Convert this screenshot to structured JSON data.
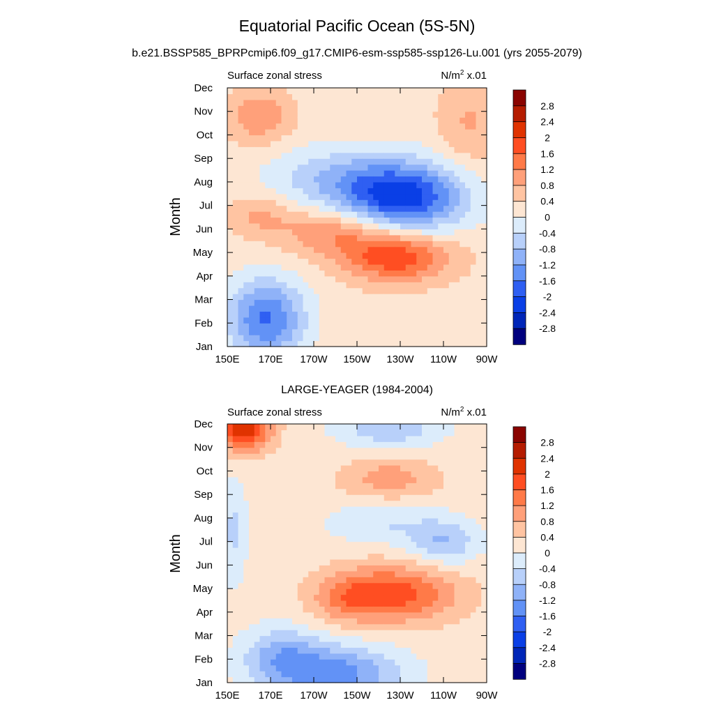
{
  "title": "Equatorial Pacific Ocean (5S-5N)",
  "subtitle": "b.e21.BSSP585_BPRPcmip6.f09_g17.CMIP6-esm-ssp585-ssp126-Lu.001 (yrs 2055-2079)",
  "chart_data": [
    {
      "type": "heatmap",
      "panel_title": "",
      "left_label": "Surface zonal stress",
      "units_label": "N/m",
      "units_sup": "2",
      "units_suffix": " x.01",
      "ylabel": "Month",
      "x_ticks": [
        "150E",
        "170E",
        "170W",
        "150W",
        "130W",
        "110W",
        "90W"
      ],
      "y_ticks": [
        "Jan",
        "Feb",
        "Mar",
        "Apr",
        "May",
        "Jun",
        "Jul",
        "Aug",
        "Sep",
        "Oct",
        "Nov",
        "Dec"
      ],
      "xlim_deg_east": [
        150,
        270
      ],
      "contour_levels": [
        -2.8,
        -2.4,
        -2,
        -1.6,
        -1.2,
        -0.8,
        -0.4,
        0,
        0.4,
        0.8,
        1.2,
        1.6,
        2,
        2.4,
        2.8
      ],
      "features": [
        {
          "lon": 168,
          "month": 2.2,
          "amp": -1.9,
          "rlon": 18,
          "rmon": 1.7
        },
        {
          "lon": 232,
          "month": 7.3,
          "amp": -2.1,
          "rlon": 28,
          "rmon": 1.4
        },
        {
          "lon": 215,
          "month": 8.0,
          "amp": -0.8,
          "rlon": 34,
          "rmon": 1.5
        },
        {
          "lon": 190,
          "month": 8.3,
          "amp": -0.4,
          "rlon": 28,
          "rmon": 1.2
        },
        {
          "lon": 228,
          "month": 4.8,
          "amp": 1.7,
          "rlon": 24,
          "rmon": 1.0
        },
        {
          "lon": 200,
          "month": 5.9,
          "amp": 1.0,
          "rlon": 26,
          "rmon": 1.0
        },
        {
          "lon": 165,
          "month": 6.6,
          "amp": 0.6,
          "rlon": 14,
          "rmon": 0.8
        },
        {
          "lon": 165,
          "month": 10.8,
          "amp": 0.9,
          "rlon": 14,
          "rmon": 1.1
        },
        {
          "lon": 262,
          "month": 10.5,
          "amp": 0.6,
          "rlon": 14,
          "rmon": 1.8
        }
      ],
      "background": 0.25
    },
    {
      "type": "heatmap",
      "panel_title": "LARGE-YEAGER (1984-2004)",
      "left_label": "Surface zonal stress",
      "units_label": "N/m",
      "units_sup": "2",
      "units_suffix": " x.01",
      "ylabel": "Month",
      "x_ticks": [
        "150E",
        "170E",
        "170W",
        "150W",
        "130W",
        "110W",
        "90W"
      ],
      "y_ticks": [
        "Jan",
        "Feb",
        "Mar",
        "Apr",
        "May",
        "Jun",
        "Jul",
        "Aug",
        "Sep",
        "Oct",
        "Nov",
        "Dec"
      ],
      "xlim_deg_east": [
        150,
        270
      ],
      "contour_levels": [
        -2.8,
        -2.4,
        -2,
        -1.6,
        -1.2,
        -0.8,
        -0.4,
        0,
        0.4,
        0.8,
        1.2,
        1.6,
        2,
        2.4,
        2.8
      ],
      "features": [
        {
          "lon": 158,
          "month": 11.8,
          "amp": 2.2,
          "rlon": 12,
          "rmon": 0.9
        },
        {
          "lon": 228,
          "month": 4.8,
          "amp": 1.6,
          "rlon": 28,
          "rmon": 1.2
        },
        {
          "lon": 205,
          "month": 4.6,
          "amp": 0.7,
          "rlon": 16,
          "rmon": 1.0
        },
        {
          "lon": 225,
          "month": 9.7,
          "amp": 0.8,
          "rlon": 22,
          "rmon": 0.9
        },
        {
          "lon": 200,
          "month": 1.4,
          "amp": -1.6,
          "rlon": 30,
          "rmon": 1.2
        },
        {
          "lon": 175,
          "month": 2.2,
          "amp": -1.0,
          "rlon": 18,
          "rmon": 1.2
        },
        {
          "lon": 250,
          "month": 7.0,
          "amp": -1.0,
          "rlon": 16,
          "rmon": 1.0
        },
        {
          "lon": 220,
          "month": 7.8,
          "amp": -0.6,
          "rlon": 24,
          "rmon": 0.9
        },
        {
          "lon": 225,
          "month": 11.8,
          "amp": -0.9,
          "rlon": 24,
          "rmon": 0.8
        },
        {
          "lon": 153,
          "month": 7.5,
          "amp": -0.7,
          "rlon": 6,
          "rmon": 2.2
        }
      ],
      "background": 0.2
    }
  ],
  "colorbar_labels": [
    "2.8",
    "2.4",
    "2",
    "1.6",
    "1.2",
    "0.8",
    "0.4",
    "0",
    "-0.4",
    "-0.8",
    "-1.2",
    "-1.6",
    "-2",
    "-2.4",
    "-2.8"
  ],
  "colorbar_colors": [
    "#8a0400",
    "#b51c00",
    "#e03300",
    "#ff4e22",
    "#ff7a48",
    "#ffa07a",
    "#ffc4a2",
    "#fde6d3",
    "#dcecfb",
    "#b8d0fa",
    "#8fb2f8",
    "#6292f6",
    "#2f5ff2",
    "#0a3fe6",
    "#0026b8",
    "#00007e"
  ]
}
